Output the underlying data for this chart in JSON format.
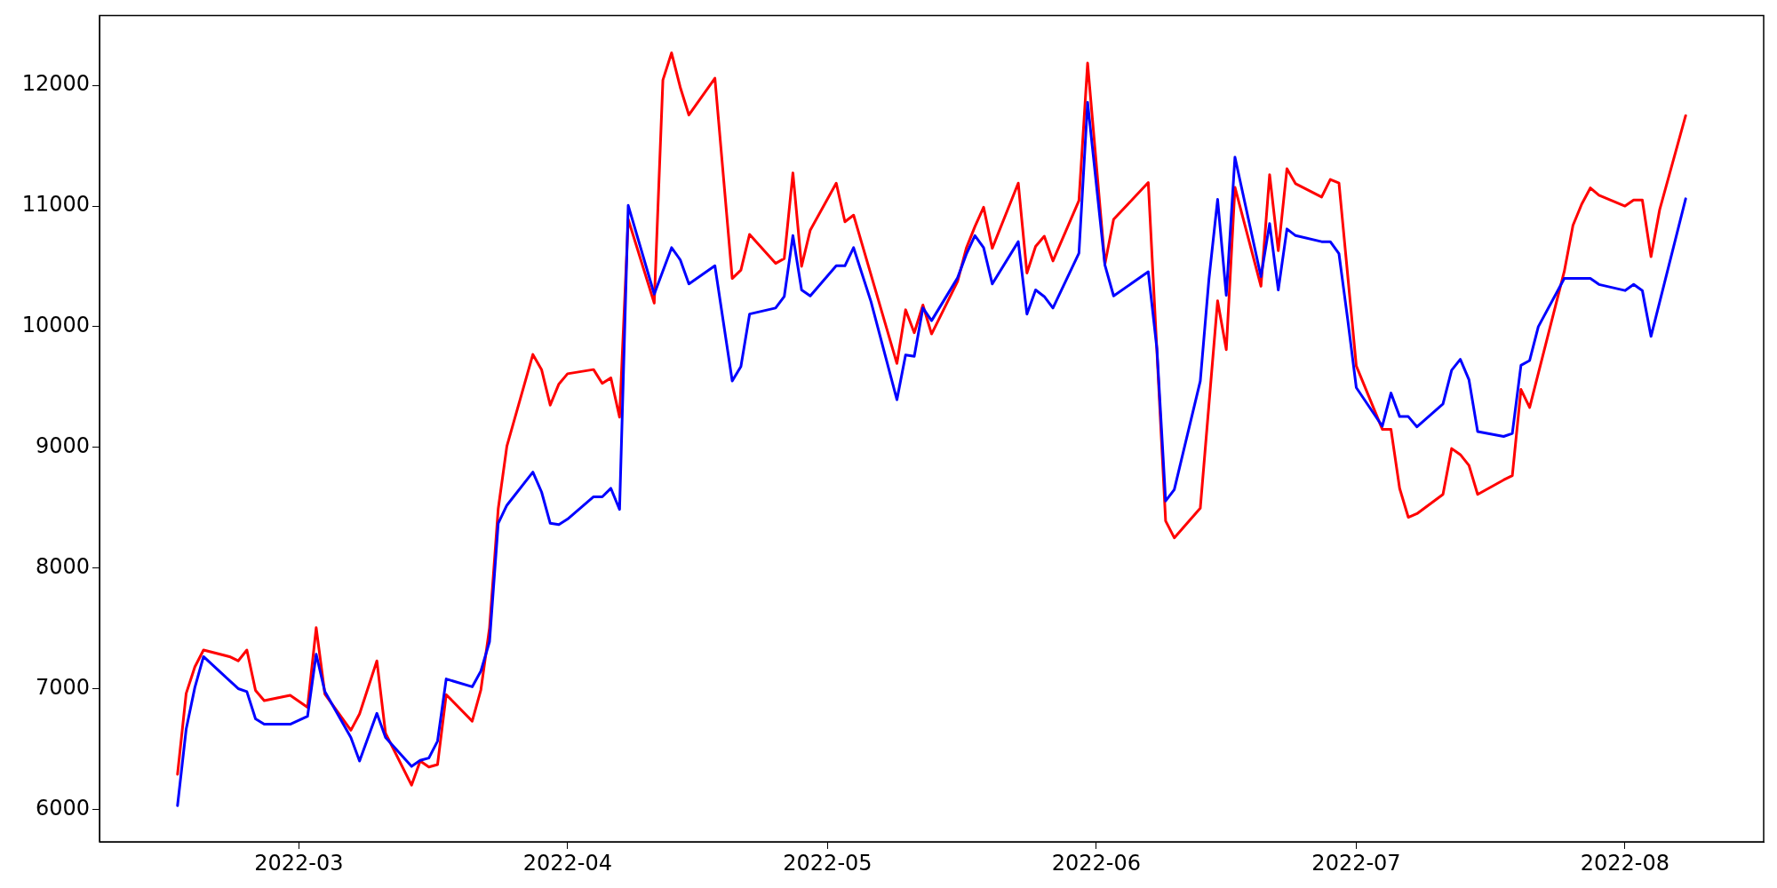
{
  "chart_data": {
    "type": "line",
    "xlim": [
      "2022-02-06",
      "2022-08-17"
    ],
    "ylim": [
      5730,
      12580
    ],
    "xticks": [
      "2022-03",
      "2022-04",
      "2022-05",
      "2022-06",
      "2022-07",
      "2022-08"
    ],
    "yticks": [
      6000,
      7000,
      8000,
      9000,
      10000,
      11000,
      12000
    ],
    "series": [
      {
        "color": "#ff0000",
        "x": [
          "2022-02-15",
          "2022-02-16",
          "2022-02-17",
          "2022-02-18",
          "2022-02-21",
          "2022-02-22",
          "2022-02-23",
          "2022-02-24",
          "2022-02-25",
          "2022-02-28",
          "2022-03-02",
          "2022-03-03",
          "2022-03-04",
          "2022-03-07",
          "2022-03-08",
          "2022-03-10",
          "2022-03-11",
          "2022-03-14",
          "2022-03-15",
          "2022-03-16",
          "2022-03-17",
          "2022-03-18",
          "2022-03-21",
          "2022-03-22",
          "2022-03-23",
          "2022-03-24",
          "2022-03-25",
          "2022-03-28",
          "2022-03-29",
          "2022-03-30",
          "2022-03-31",
          "2022-04-01",
          "2022-04-04",
          "2022-04-05",
          "2022-04-06",
          "2022-04-07",
          "2022-04-08",
          "2022-04-11",
          "2022-04-12",
          "2022-04-13",
          "2022-04-14",
          "2022-04-15",
          "2022-04-18",
          "2022-04-20",
          "2022-04-21",
          "2022-04-22",
          "2022-04-25",
          "2022-04-26",
          "2022-04-27",
          "2022-04-28",
          "2022-04-29",
          "2022-05-02",
          "2022-05-03",
          "2022-05-04",
          "2022-05-09",
          "2022-05-10",
          "2022-05-11",
          "2022-05-12",
          "2022-05-13",
          "2022-05-16",
          "2022-05-17",
          "2022-05-18",
          "2022-05-19",
          "2022-05-20",
          "2022-05-23",
          "2022-05-24",
          "2022-05-25",
          "2022-05-26",
          "2022-05-27",
          "2022-05-30",
          "2022-05-31",
          "2022-06-02",
          "2022-06-03",
          "2022-06-07",
          "2022-06-09",
          "2022-06-10",
          "2022-06-13",
          "2022-06-15",
          "2022-06-16",
          "2022-06-17",
          "2022-06-20",
          "2022-06-21",
          "2022-06-22",
          "2022-06-23",
          "2022-06-24",
          "2022-06-27",
          "2022-06-28",
          "2022-06-29",
          "2022-07-01",
          "2022-07-04",
          "2022-07-05",
          "2022-07-06",
          "2022-07-07",
          "2022-07-08",
          "2022-07-11",
          "2022-07-12",
          "2022-07-13",
          "2022-07-14",
          "2022-07-15",
          "2022-07-18",
          "2022-07-19",
          "2022-07-20",
          "2022-07-21",
          "2022-07-25",
          "2022-07-26",
          "2022-07-27",
          "2022-07-28",
          "2022-07-29",
          "2022-08-01",
          "2022-08-02",
          "2022-08-03",
          "2022-08-04",
          "2022-08-05",
          "2022-08-08"
        ],
        "values": [
          6290,
          6960,
          7180,
          7320,
          7265,
          7230,
          7320,
          6985,
          6900,
          6945,
          6845,
          7505,
          6955,
          6655,
          6790,
          7230,
          6630,
          6200,
          6400,
          6350,
          6370,
          6950,
          6730,
          6990,
          7505,
          8490,
          9010,
          9770,
          9645,
          9350,
          9525,
          9610,
          9645,
          9530,
          9575,
          9250,
          10890,
          10195,
          12045,
          12270,
          11985,
          11755,
          12060,
          10400,
          10470,
          10765,
          10525,
          10565,
          11275,
          10500,
          10800,
          11190,
          10870,
          10925,
          9695,
          10140,
          9950,
          10180,
          9940,
          10375,
          10650,
          10830,
          10990,
          10650,
          11190,
          10445,
          10665,
          10750,
          10545,
          11045,
          12185,
          10520,
          10890,
          11195,
          8390,
          8250,
          8495,
          10215,
          9810,
          11155,
          10335,
          11260,
          10630,
          11310,
          11185,
          11075,
          11220,
          11190,
          9675,
          9150,
          9150,
          8660,
          8420,
          8450,
          8610,
          8990,
          8940,
          8850,
          8610,
          8730,
          8765,
          9480,
          9330,
          10460,
          10840,
          11015,
          11150,
          11090,
          11000,
          11050,
          11050,
          10580,
          10970,
          11750
        ]
      },
      {
        "color": "#0000ff",
        "x": [
          "2022-02-15",
          "2022-02-16",
          "2022-02-17",
          "2022-02-18",
          "2022-02-22",
          "2022-02-23",
          "2022-02-24",
          "2022-02-25",
          "2022-02-28",
          "2022-03-02",
          "2022-03-03",
          "2022-03-04",
          "2022-03-07",
          "2022-03-08",
          "2022-03-10",
          "2022-03-11",
          "2022-03-14",
          "2022-03-15",
          "2022-03-16",
          "2022-03-17",
          "2022-03-18",
          "2022-03-21",
          "2022-03-22",
          "2022-03-23",
          "2022-03-24",
          "2022-03-25",
          "2022-03-28",
          "2022-03-29",
          "2022-03-30",
          "2022-03-31",
          "2022-04-01",
          "2022-04-04",
          "2022-04-05",
          "2022-04-06",
          "2022-04-07",
          "2022-04-08",
          "2022-04-11",
          "2022-04-13",
          "2022-04-14",
          "2022-04-15",
          "2022-04-18",
          "2022-04-20",
          "2022-04-21",
          "2022-04-22",
          "2022-04-25",
          "2022-04-26",
          "2022-04-27",
          "2022-04-28",
          "2022-04-29",
          "2022-05-02",
          "2022-05-03",
          "2022-05-04",
          "2022-05-06",
          "2022-05-09",
          "2022-05-10",
          "2022-05-11",
          "2022-05-12",
          "2022-05-13",
          "2022-05-16",
          "2022-05-17",
          "2022-05-18",
          "2022-05-19",
          "2022-05-20",
          "2022-05-23",
          "2022-05-24",
          "2022-05-25",
          "2022-05-26",
          "2022-05-27",
          "2022-05-30",
          "2022-05-31",
          "2022-06-02",
          "2022-06-03",
          "2022-06-07",
          "2022-06-08",
          "2022-06-09",
          "2022-06-10",
          "2022-06-13",
          "2022-06-14",
          "2022-06-15",
          "2022-06-16",
          "2022-06-17",
          "2022-06-20",
          "2022-06-21",
          "2022-06-22",
          "2022-06-23",
          "2022-06-24",
          "2022-06-27",
          "2022-06-28",
          "2022-06-29",
          "2022-06-30",
          "2022-07-01",
          "2022-07-04",
          "2022-07-05",
          "2022-07-06",
          "2022-07-07",
          "2022-07-08",
          "2022-07-11",
          "2022-07-12",
          "2022-07-13",
          "2022-07-14",
          "2022-07-15",
          "2022-07-18",
          "2022-07-19",
          "2022-07-20",
          "2022-07-21",
          "2022-07-22",
          "2022-07-25",
          "2022-07-28",
          "2022-07-29",
          "2022-08-01",
          "2022-08-02",
          "2022-08-03",
          "2022-08-04",
          "2022-08-08"
        ],
        "values": [
          6030,
          6665,
          7010,
          7265,
          7000,
          6975,
          6750,
          6705,
          6705,
          6770,
          7285,
          6975,
          6595,
          6400,
          6795,
          6595,
          6355,
          6405,
          6425,
          6565,
          7080,
          7015,
          7145,
          7390,
          8370,
          8520,
          8795,
          8630,
          8370,
          8360,
          8405,
          8590,
          8590,
          8660,
          8485,
          11005,
          10270,
          10655,
          10555,
          10355,
          10505,
          9550,
          9670,
          10105,
          10155,
          10250,
          10755,
          10305,
          10255,
          10505,
          10505,
          10655,
          10210,
          9395,
          9765,
          9755,
          10155,
          10050,
          10405,
          10600,
          10755,
          10655,
          10355,
          10705,
          10105,
          10305,
          10250,
          10155,
          10610,
          11860,
          10510,
          10255,
          10455,
          9815,
          8555,
          8650,
          9550,
          10395,
          11055,
          10260,
          11405,
          10415,
          10855,
          10305,
          10810,
          10755,
          10705,
          10705,
          10605,
          10065,
          9495,
          9175,
          9450,
          9255,
          9255,
          9170,
          9360,
          9640,
          9730,
          9560,
          9130,
          9090,
          9115,
          9680,
          9720,
          10000,
          10400,
          10400,
          10350,
          10300,
          10350,
          10300,
          9920,
          11060
        ]
      }
    ]
  }
}
